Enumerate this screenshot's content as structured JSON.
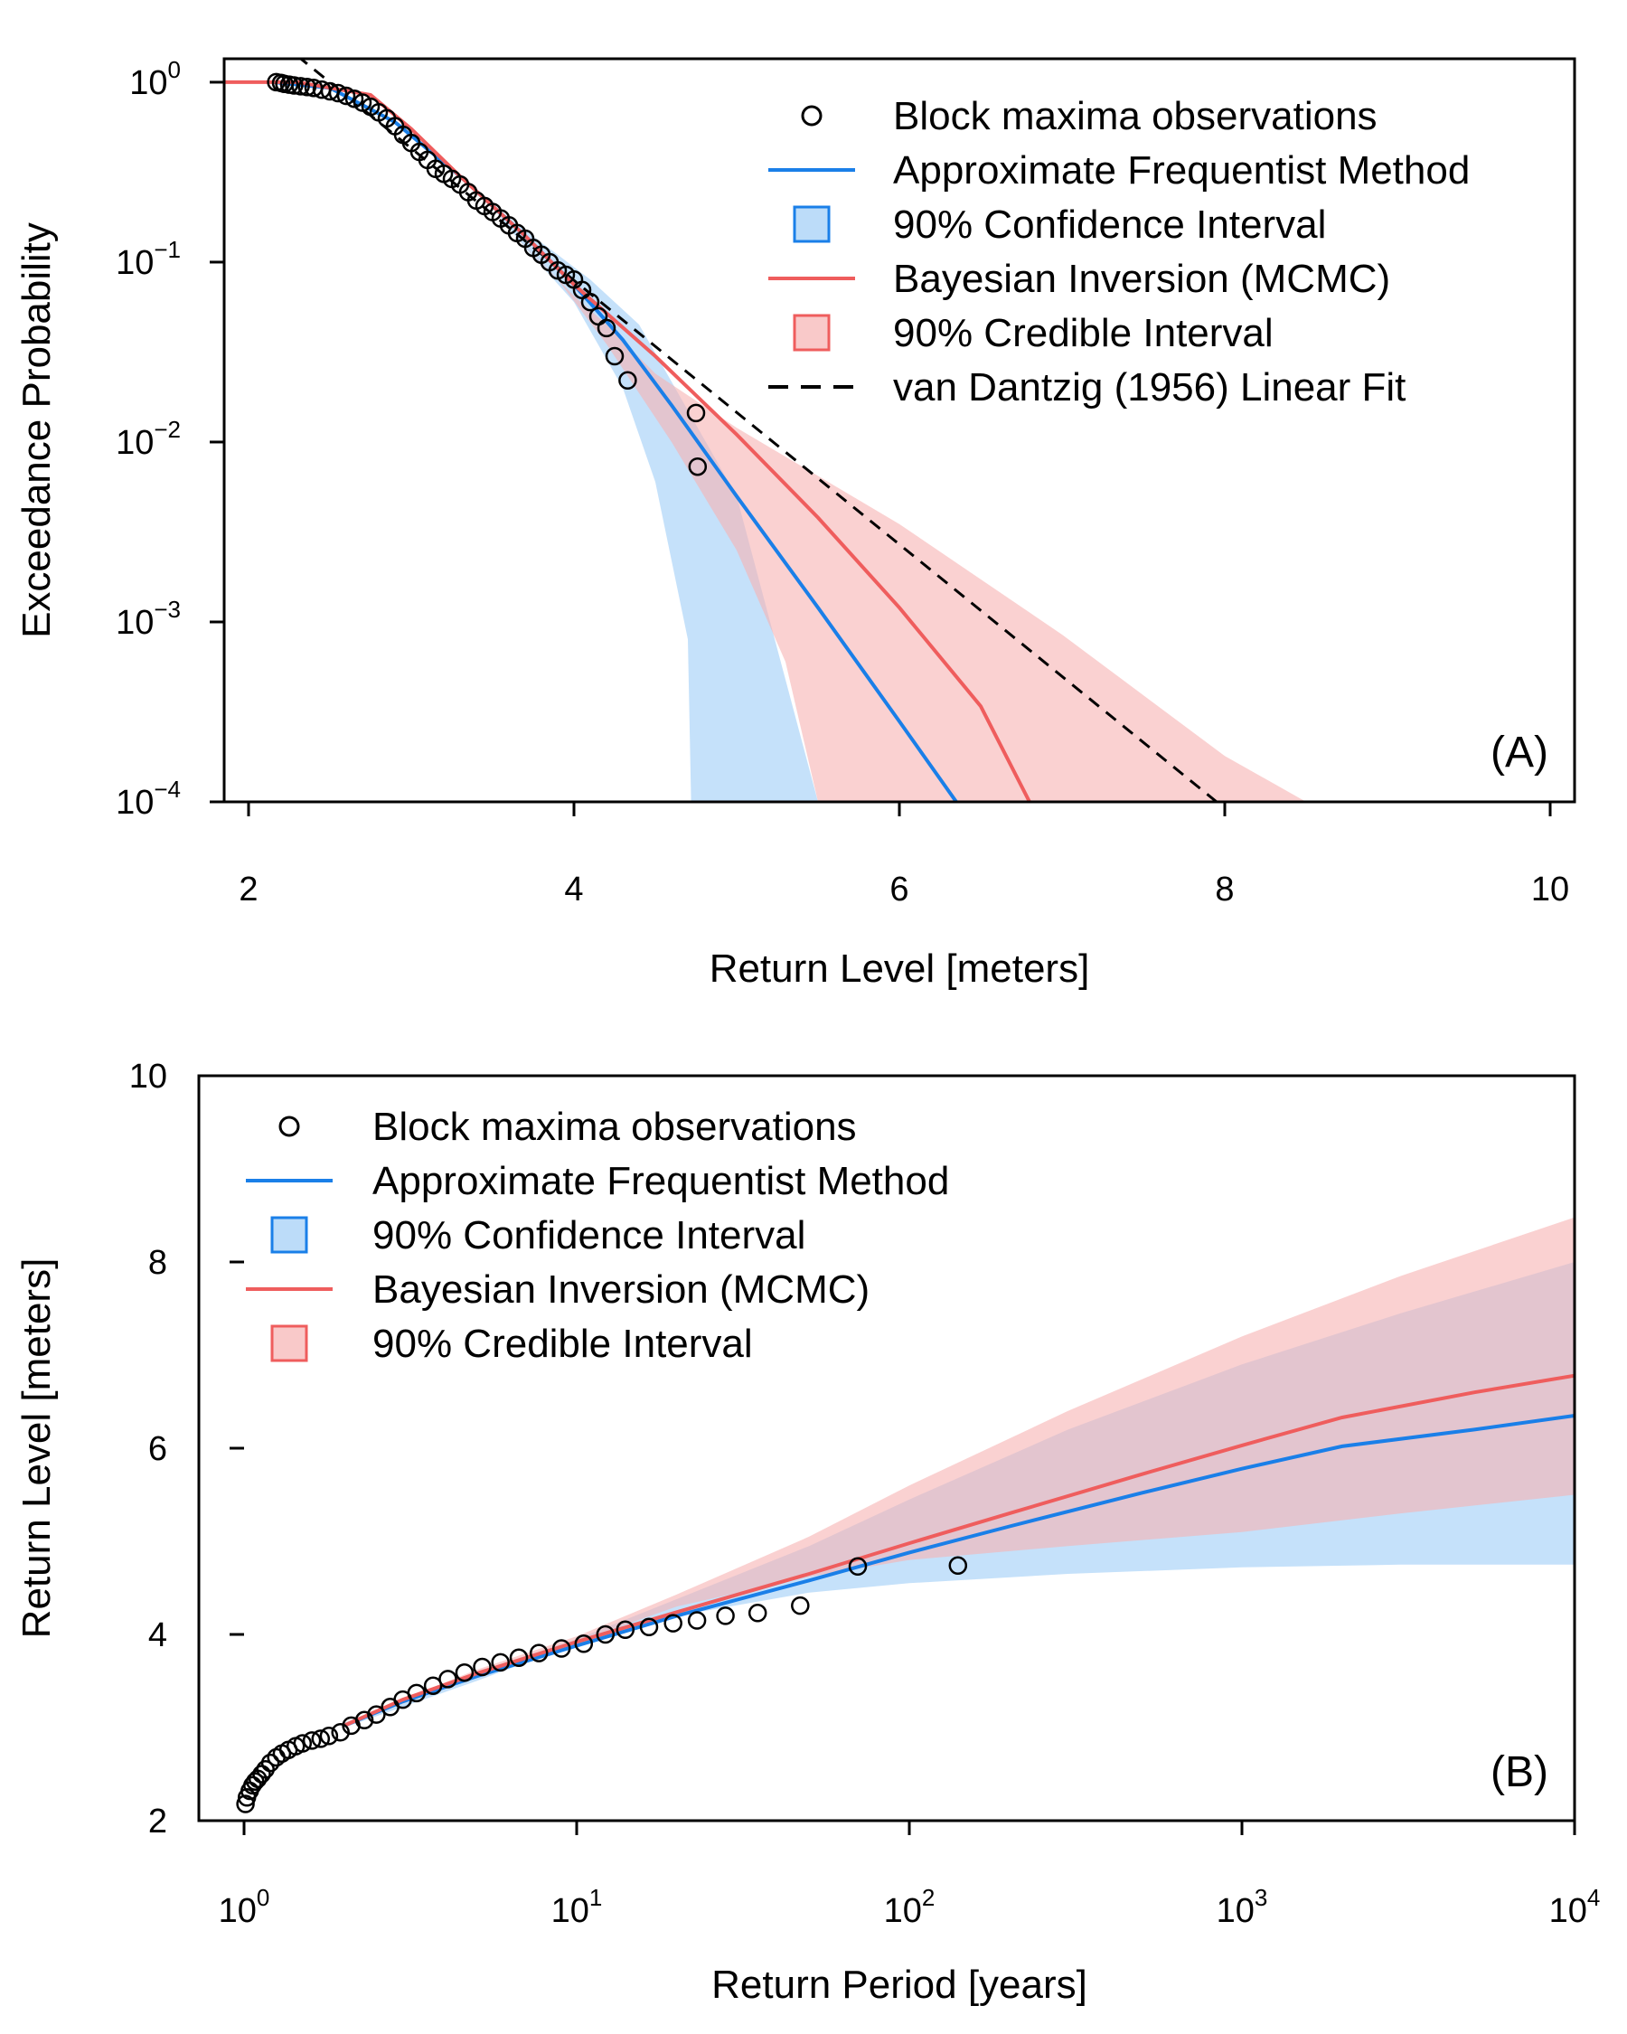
{
  "colors": {
    "frequentist": "#1a7fe8",
    "bayesian": "#ef5d5d",
    "ci_fill": "#9fcdf7",
    "cred_fill": "#f7b2b2",
    "dantzig": "#000000",
    "observations": "#000000"
  },
  "chart_data": [
    {
      "type": "line",
      "panel_label": "(A)",
      "xlabel": "Return Level [meters]",
      "ylabel": "Exceedance Probability",
      "xlim": [
        1.85,
        10.15
      ],
      "ylim": [
        0.0001,
        1.35
      ],
      "y_scale": "log",
      "x_ticks": [
        2,
        4,
        6,
        8,
        10
      ],
      "x_tick_labels": [
        "2",
        "4",
        "6",
        "8",
        "10"
      ],
      "y_ticks": [
        1,
        0.1,
        0.01,
        0.001,
        0.0001
      ],
      "y_tick_labels": [
        {
          "base": "10",
          "exp": "0"
        },
        {
          "base": "10",
          "exp": "−1"
        },
        {
          "base": "10",
          "exp": "−2"
        },
        {
          "base": "10",
          "exp": "−3"
        },
        {
          "base": "10",
          "exp": "−4"
        }
      ],
      "legend": {
        "position": "top-right",
        "entries": [
          {
            "key": "observations",
            "label": "Block maxima observations"
          },
          {
            "key": "frequentist",
            "label": "Approximate Frequentist Method"
          },
          {
            "key": "ci",
            "label": "90% Confidence Interval"
          },
          {
            "key": "bayesian",
            "label": "Bayesian Inversion (MCMC)"
          },
          {
            "key": "cred",
            "label": "90% Credible Interval"
          },
          {
            "key": "dantzig",
            "label": "van Dantzig (1956) Linear Fit"
          }
        ]
      },
      "series": [
        {
          "key": "frequentist",
          "kind": "line",
          "x": [
            2.15,
            2.5,
            2.9,
            3.3,
            3.7,
            4.0,
            4.3,
            4.6,
            5.0,
            5.5,
            6.0,
            6.35
          ],
          "y": [
            1.0,
            0.93,
            0.6,
            0.3,
            0.14,
            0.075,
            0.037,
            0.016,
            0.005,
            0.0012,
            0.00028,
            0.0001
          ]
        },
        {
          "key": "bayesian",
          "kind": "line",
          "x": [
            1.8,
            2.3,
            2.75,
            3.0,
            3.3,
            3.7,
            4.0,
            4.5,
            5.0,
            5.5,
            6.0,
            6.5,
            6.8
          ],
          "y": [
            1.0,
            1.0,
            0.85,
            0.55,
            0.3,
            0.14,
            0.075,
            0.03,
            0.011,
            0.0038,
            0.0012,
            0.00034,
            0.0001
          ]
        },
        {
          "key": "ci",
          "kind": "band",
          "x": [
            3.3,
            3.5,
            3.7,
            4.0,
            4.3,
            4.5,
            4.7,
            4.72,
            5.0,
            5.2,
            5.5,
            5.0,
            4.4,
            4.1,
            3.9,
            3.7,
            3.5,
            3.3
          ],
          "y": [
            0.3,
            0.2,
            0.12,
            0.06,
            0.02,
            0.006,
            0.0008,
            0.0001,
            0.0001,
            0.0001,
            0.0001,
            0.005,
            0.045,
            0.08,
            0.11,
            0.15,
            0.21,
            0.3
          ]
        },
        {
          "key": "cred",
          "kind": "band",
          "x": [
            3.3,
            3.6,
            3.9,
            4.2,
            4.6,
            5.0,
            5.3,
            5.5,
            6.5,
            7.5,
            8.5,
            8.0,
            7.0,
            6.0,
            5.0,
            4.5,
            4.2,
            4.0,
            3.8,
            3.6,
            3.3
          ],
          "y": [
            0.3,
            0.15,
            0.08,
            0.035,
            0.01,
            0.0025,
            0.0006,
            0.0001,
            0.0001,
            0.0001,
            0.0001,
            0.00018,
            0.00085,
            0.0035,
            0.012,
            0.024,
            0.045,
            0.065,
            0.1,
            0.15,
            0.3
          ]
        },
        {
          "key": "dantzig",
          "kind": "dashed",
          "x": [
            2.3,
            7.95
          ],
          "y": [
            1.4,
            0.0001
          ]
        },
        {
          "key": "observations",
          "kind": "points",
          "x": [
            2.17,
            2.2,
            2.22,
            2.25,
            2.28,
            2.32,
            2.36,
            2.4,
            2.45,
            2.5,
            2.55,
            2.6,
            2.65,
            2.7,
            2.75,
            2.8,
            2.85,
            2.9,
            2.95,
            3.0,
            3.05,
            3.1,
            3.15,
            3.2,
            3.25,
            3.3,
            3.35,
            3.4,
            3.45,
            3.5,
            3.55,
            3.6,
            3.65,
            3.7,
            3.75,
            3.8,
            3.85,
            3.9,
            3.95,
            4.0,
            4.05,
            4.1,
            4.15,
            4.2,
            4.25,
            4.33,
            4.75,
            4.76
          ],
          "y": [
            1.0,
            0.99,
            0.98,
            0.97,
            0.96,
            0.95,
            0.94,
            0.93,
            0.91,
            0.89,
            0.87,
            0.84,
            0.81,
            0.77,
            0.73,
            0.68,
            0.63,
            0.57,
            0.51,
            0.46,
            0.41,
            0.37,
            0.33,
            0.31,
            0.29,
            0.27,
            0.245,
            0.22,
            0.205,
            0.19,
            0.175,
            0.16,
            0.145,
            0.135,
            0.12,
            0.11,
            0.1,
            0.09,
            0.085,
            0.08,
            0.07,
            0.06,
            0.05,
            0.043,
            0.03,
            0.022,
            0.0145,
            0.0073
          ]
        }
      ]
    },
    {
      "type": "line",
      "panel_label": "(B)",
      "xlabel": "Return Period [years]",
      "ylabel": "Return Level [meters]",
      "xlim": [
        1,
        10000
      ],
      "ylim": [
        2,
        10
      ],
      "x_scale": "log",
      "x_ticks": [
        1,
        10,
        100,
        1000,
        10000
      ],
      "x_tick_labels": [
        {
          "base": "10",
          "exp": "0"
        },
        {
          "base": "10",
          "exp": "1"
        },
        {
          "base": "10",
          "exp": "2"
        },
        {
          "base": "10",
          "exp": "3"
        },
        {
          "base": "10",
          "exp": "4"
        }
      ],
      "y_ticks": [
        2,
        4,
        6,
        8,
        10
      ],
      "y_tick_labels": [
        "2",
        "4",
        "6",
        "8",
        "10"
      ],
      "legend": {
        "position": "top-left",
        "entries": [
          {
            "key": "observations",
            "label": "Block maxima observations"
          },
          {
            "key": "frequentist",
            "label": "Approximate Frequentist Method"
          },
          {
            "key": "ci",
            "label": "90% Confidence Interval"
          },
          {
            "key": "bayesian",
            "label": "Bayesian Inversion (MCMC)"
          },
          {
            "key": "cred",
            "label": "90% Credible Interval"
          }
        ]
      },
      "series": [
        {
          "key": "frequentist",
          "kind": "line",
          "x": [
            2,
            3,
            5,
            10,
            20,
            50,
            100,
            200,
            500,
            1000,
            2000,
            5000,
            10000
          ],
          "y": [
            3.02,
            3.28,
            3.55,
            3.88,
            4.2,
            4.58,
            4.88,
            5.16,
            5.52,
            5.78,
            6.02,
            6.2,
            6.35
          ]
        },
        {
          "key": "bayesian",
          "kind": "line",
          "x": [
            2,
            3,
            5,
            10,
            20,
            50,
            100,
            200,
            500,
            1000,
            2000,
            5000,
            10000
          ],
          "y": [
            3.02,
            3.3,
            3.58,
            3.92,
            4.24,
            4.65,
            4.98,
            5.3,
            5.72,
            6.03,
            6.33,
            6.6,
            6.78
          ]
        },
        {
          "key": "ci",
          "kind": "band",
          "x": [
            2,
            5,
            10,
            20,
            50,
            100,
            300,
            1000,
            3000,
            10000,
            10000,
            3000,
            1000,
            300,
            100,
            50,
            20,
            10,
            5,
            2
          ],
          "y": [
            3.05,
            3.6,
            3.95,
            4.38,
            4.95,
            5.45,
            6.2,
            6.9,
            7.45,
            8.0,
            4.75,
            4.75,
            4.72,
            4.65,
            4.55,
            4.45,
            4.2,
            3.9,
            3.5,
            3.0
          ]
        },
        {
          "key": "cred",
          "kind": "band",
          "x": [
            2,
            5,
            10,
            20,
            50,
            100,
            300,
            1000,
            3000,
            10000,
            10000,
            3000,
            1000,
            300,
            100,
            50,
            20,
            10,
            5,
            2
          ],
          "y": [
            3.05,
            3.62,
            3.98,
            4.43,
            5.05,
            5.6,
            6.4,
            7.2,
            7.85,
            8.48,
            5.5,
            5.3,
            5.1,
            4.95,
            4.8,
            4.62,
            4.3,
            3.92,
            3.55,
            3.02
          ]
        },
        {
          "key": "observations",
          "kind": "points",
          "x": [
            1.01,
            1.02,
            1.04,
            1.06,
            1.08,
            1.1,
            1.13,
            1.16,
            1.2,
            1.25,
            1.3,
            1.36,
            1.43,
            1.5,
            1.6,
            1.7,
            1.8,
            1.95,
            2.1,
            2.3,
            2.5,
            2.75,
            3.0,
            3.3,
            3.7,
            4.1,
            4.6,
            5.2,
            5.9,
            6.7,
            7.7,
            9.0,
            10.5,
            12.2,
            14.0,
            16.5,
            19.5,
            23.0,
            28.0,
            35.0,
            47.0,
            70.0,
            140.0
          ],
          "y": [
            2.18,
            2.25,
            2.32,
            2.38,
            2.42,
            2.45,
            2.5,
            2.55,
            2.62,
            2.68,
            2.72,
            2.76,
            2.8,
            2.83,
            2.86,
            2.88,
            2.91,
            2.95,
            3.02,
            3.08,
            3.14,
            3.22,
            3.3,
            3.37,
            3.45,
            3.52,
            3.59,
            3.65,
            3.7,
            3.75,
            3.8,
            3.85,
            3.9,
            4.0,
            4.05,
            4.08,
            4.12,
            4.15,
            4.2,
            4.23,
            4.31,
            4.73,
            4.74
          ]
        }
      ]
    }
  ]
}
